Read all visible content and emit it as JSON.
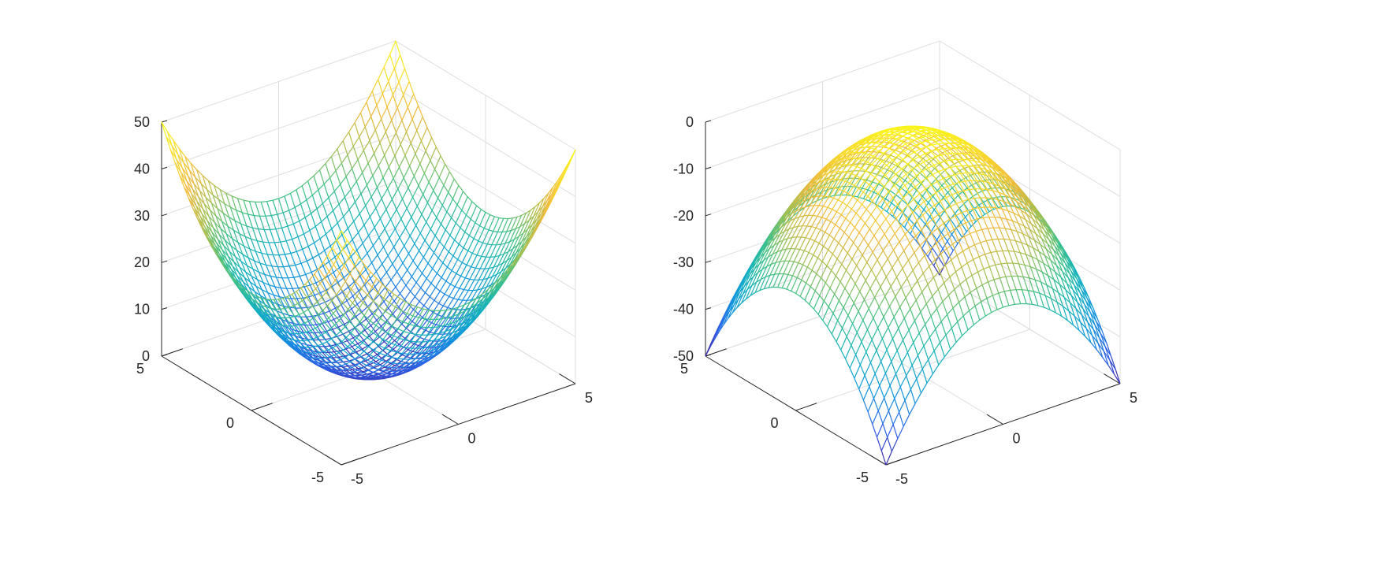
{
  "chart_data": [
    {
      "type": "surface-mesh",
      "function": "x^2 + y^2",
      "x": {
        "range": [
          -5,
          5
        ],
        "ticks": [
          -5,
          0,
          5
        ],
        "tick_labels": [
          "-5",
          "0",
          "5"
        ]
      },
      "y": {
        "range": [
          -5,
          5
        ],
        "ticks": [
          -5,
          0,
          5
        ],
        "tick_labels": [
          "-5",
          "0",
          "5"
        ]
      },
      "z": {
        "range": [
          0,
          50
        ],
        "ticks": [
          0,
          10,
          20,
          30,
          40,
          50
        ],
        "tick_labels": [
          "0",
          "10",
          "20",
          "30",
          "40",
          "50"
        ]
      },
      "grid_points": 41,
      "z_min": 0,
      "z_max": 50,
      "colormap": [
        "#3e26a8",
        "#2c63e8",
        "#0f96dd",
        "#12b2bd",
        "#3fc185",
        "#a8bf4e",
        "#f1b93b",
        "#f9dc2a",
        "#f9fb15"
      ],
      "xlabel": "",
      "ylabel": "",
      "zlabel": "",
      "title": "",
      "grid": true
    },
    {
      "type": "surface-mesh",
      "function": "-(x^2 + y^2)",
      "x": {
        "range": [
          -5,
          5
        ],
        "ticks": [
          -5,
          0,
          5
        ],
        "tick_labels": [
          "-5",
          "0",
          "5"
        ]
      },
      "y": {
        "range": [
          -5,
          5
        ],
        "ticks": [
          -5,
          0,
          5
        ],
        "tick_labels": [
          "-5",
          "0",
          "5"
        ]
      },
      "z": {
        "range": [
          -50,
          0
        ],
        "ticks": [
          -50,
          -40,
          -30,
          -20,
          -10,
          0
        ],
        "tick_labels": [
          "-50",
          "-40",
          "-30",
          "-20",
          "-10",
          "0"
        ]
      },
      "grid_points": 41,
      "z_min": -50,
      "z_max": 0,
      "colormap": [
        "#3e26a8",
        "#2c63e8",
        "#0f96dd",
        "#12b2bd",
        "#3fc185",
        "#a8bf4e",
        "#f1b93b",
        "#f9dc2a",
        "#f9fb15"
      ],
      "xlabel": "",
      "ylabel": "",
      "zlabel": "",
      "title": "",
      "grid": true
    }
  ]
}
